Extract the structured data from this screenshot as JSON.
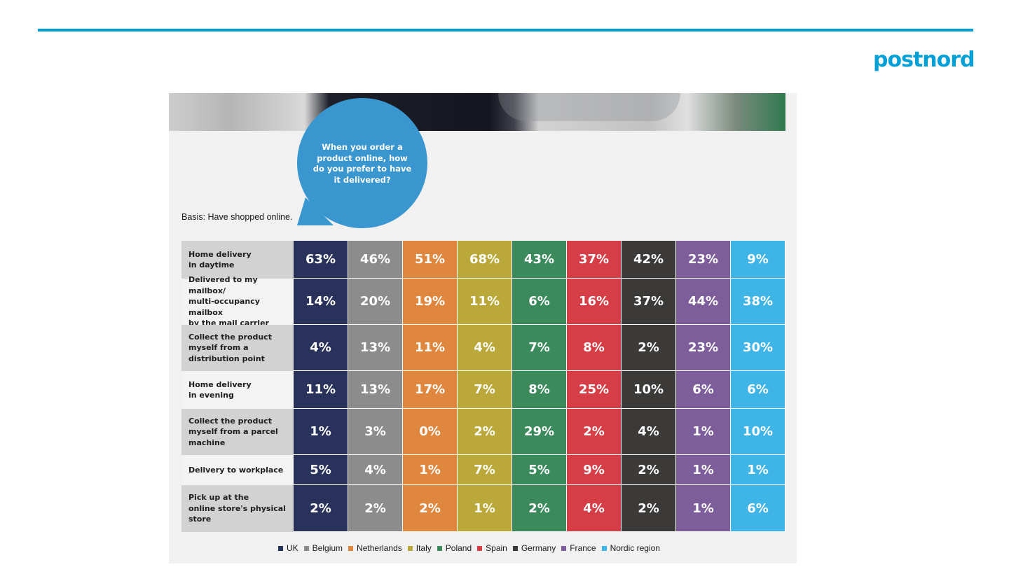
{
  "header": {
    "brand": "postnord",
    "accent_color": "#00a0d6"
  },
  "bubble": {
    "question": "When you order a product online, how do you prefer to have it delivered?"
  },
  "basis": "Basis: Have shopped online.",
  "chart_data": {
    "type": "table",
    "title": "When you order a product online, how do you prefer to have it delivered?",
    "columns": [
      "UK",
      "Belgium",
      "Netherlands",
      "Italy",
      "Poland",
      "Spain",
      "Germany",
      "France",
      "Nordic region"
    ],
    "column_colors": [
      "#28325a",
      "#8c8c8c",
      "#e0873f",
      "#bba83a",
      "#3a8a5c",
      "#d53e46",
      "#3b3a38",
      "#7d5d9a",
      "#3fb4e6"
    ],
    "rows": [
      {
        "label": "Home delivery in daytime",
        "label_lines": [
          "Home delivery",
          "in daytime"
        ],
        "values": [
          "63%",
          "46%",
          "51%",
          "68%",
          "43%",
          "37%",
          "42%",
          "23%",
          "9%"
        ]
      },
      {
        "label": "Delivered to my mailbox/ multi-occupancy mailbox by the mail carrier",
        "label_lines": [
          "Delivered to my mailbox/",
          "multi-occupancy mailbox",
          "by the mail carrier"
        ],
        "values": [
          "14%",
          "20%",
          "19%",
          "11%",
          "6%",
          "16%",
          "37%",
          "44%",
          "38%"
        ]
      },
      {
        "label": "Collect the product myself from a distribution point",
        "label_lines": [
          "Collect the product",
          "myself from a",
          "distribution point"
        ],
        "values": [
          "4%",
          "13%",
          "11%",
          "4%",
          "7%",
          "8%",
          "2%",
          "23%",
          "30%"
        ]
      },
      {
        "label": "Home delivery in evening",
        "label_lines": [
          "Home delivery",
          "in evening"
        ],
        "values": [
          "11%",
          "13%",
          "17%",
          "7%",
          "8%",
          "25%",
          "10%",
          "6%",
          "6%"
        ]
      },
      {
        "label": "Collect the product myself from a parcel machine",
        "label_lines": [
          "Collect the product",
          "myself from a parcel",
          "machine"
        ],
        "values": [
          "1%",
          "3%",
          "0%",
          "2%",
          "29%",
          "2%",
          "4%",
          "1%",
          "10%"
        ]
      },
      {
        "label": "Delivery to workplace",
        "label_lines": [
          "Delivery to workplace"
        ],
        "values": [
          "5%",
          "4%",
          "1%",
          "7%",
          "5%",
          "9%",
          "2%",
          "1%",
          "1%"
        ]
      },
      {
        "label": "Pick up at the online store's physical store",
        "label_lines": [
          "Pick up at the",
          "online store's physical",
          "store"
        ],
        "values": [
          "2%",
          "2%",
          "2%",
          "1%",
          "2%",
          "4%",
          "2%",
          "1%",
          "6%"
        ]
      }
    ],
    "legend": [
      "UK",
      "Belgium",
      "Netherlands",
      "Italy",
      "Poland",
      "Spain",
      "Germany",
      "France",
      "Nordic region"
    ]
  }
}
